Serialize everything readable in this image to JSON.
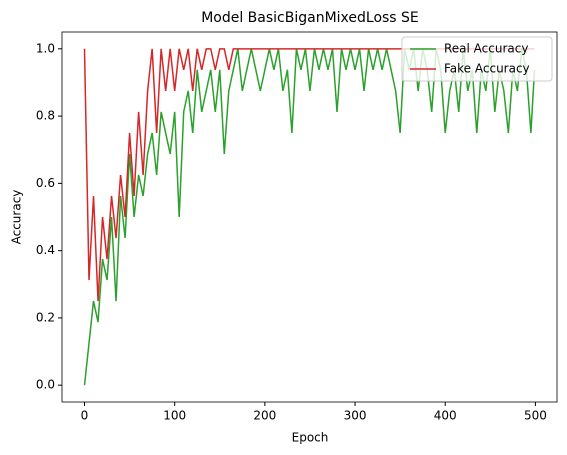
{
  "chart_data": {
    "type": "line",
    "title": "Model BasicBiganMixedLoss SE",
    "xlabel": "Epoch",
    "ylabel": "Accuracy",
    "x": [
      0,
      5,
      10,
      15,
      20,
      25,
      30,
      35,
      40,
      45,
      50,
      55,
      60,
      65,
      70,
      75,
      80,
      85,
      90,
      95,
      100,
      105,
      110,
      115,
      120,
      125,
      130,
      135,
      140,
      145,
      150,
      155,
      160,
      165,
      170,
      175,
      180,
      185,
      190,
      195,
      200,
      205,
      210,
      215,
      220,
      225,
      230,
      235,
      240,
      245,
      250,
      255,
      260,
      265,
      270,
      275,
      280,
      285,
      290,
      295,
      300,
      305,
      310,
      315,
      320,
      325,
      330,
      335,
      340,
      345,
      350,
      355,
      360,
      365,
      370,
      375,
      380,
      385,
      390,
      395,
      400,
      405,
      410,
      415,
      420,
      425,
      430,
      435,
      440,
      445,
      450,
      455,
      460,
      465,
      470,
      475,
      480,
      485,
      490,
      495,
      499
    ],
    "series": [
      {
        "name": "Real Accuracy",
        "color": "#2ca02c",
        "values": [
          0,
          0.125,
          0.25,
          0.1875,
          0.375,
          0.3125,
          0.5,
          0.25,
          0.5625,
          0.4375,
          0.6875,
          0.5,
          0.625,
          0.5625,
          0.6875,
          0.75,
          0.625,
          0.8125,
          0.75,
          0.6875,
          0.8125,
          0.5,
          0.8125,
          0.875,
          0.75,
          0.9375,
          0.8125,
          0.875,
          0.9375,
          0.8125,
          0.9375,
          0.6875,
          0.875,
          0.9375,
          1,
          0.875,
          0.9375,
          1,
          0.9375,
          0.875,
          0.9375,
          1,
          0.9375,
          1,
          0.875,
          0.9375,
          0.75,
          1,
          0.9375,
          1,
          0.875,
          1,
          0.9375,
          1,
          0.9375,
          1,
          0.8125,
          1,
          0.9375,
          1,
          0.9375,
          1,
          0.875,
          1,
          0.9375,
          1,
          0.9375,
          1,
          0.9375,
          0.875,
          0.75,
          1,
          0.9375,
          1,
          0.875,
          1,
          0.9375,
          0.8125,
          1,
          0.9375,
          0.75,
          0.875,
          0.9375,
          0.8125,
          1,
          0.875,
          0.9375,
          0.75,
          0.9375,
          0.875,
          1,
          0.8125,
          0.9375,
          0.875,
          0.75,
          0.9375,
          0.875,
          1,
          0.9375,
          0.75,
          0.9375
        ]
      },
      {
        "name": "Fake Accuracy",
        "color": "#d62728",
        "values": [
          1,
          0.3125,
          0.5625,
          0.25,
          0.5,
          0.375,
          0.5625,
          0.4375,
          0.625,
          0.5,
          0.75,
          0.5625,
          0.8125,
          0.625,
          0.875,
          1,
          0.75,
          1,
          0.875,
          1,
          0.875,
          1,
          0.9375,
          1,
          0.875,
          1,
          0.9375,
          1,
          1,
          0.9375,
          1,
          1,
          0.9375,
          1,
          1,
          1,
          1,
          1,
          1,
          1,
          1,
          1,
          1,
          1,
          1,
          1,
          1,
          1,
          1,
          1,
          1,
          1,
          1,
          1,
          1,
          1,
          1,
          1,
          1,
          1,
          1,
          1,
          1,
          1,
          1,
          1,
          1,
          1,
          1,
          1,
          1,
          1,
          1,
          1,
          1,
          1,
          1,
          1,
          1,
          1,
          1,
          1,
          1,
          1,
          1,
          1,
          1,
          1,
          1,
          1,
          1,
          1,
          1,
          1,
          1,
          1,
          1,
          1,
          1,
          1,
          1
        ]
      }
    ],
    "xlim": [
      -24.95,
      523.95
    ],
    "xticks": [
      0,
      100,
      200,
      300,
      400,
      500
    ],
    "ylim": [
      -0.05,
      1.05
    ],
    "yticks": [
      {
        "value": 0,
        "label": "0.0"
      },
      0.2,
      0.4,
      0.6,
      0.8,
      {
        "value": 1,
        "label": "1.0"
      }
    ],
    "legend": "upper right"
  }
}
